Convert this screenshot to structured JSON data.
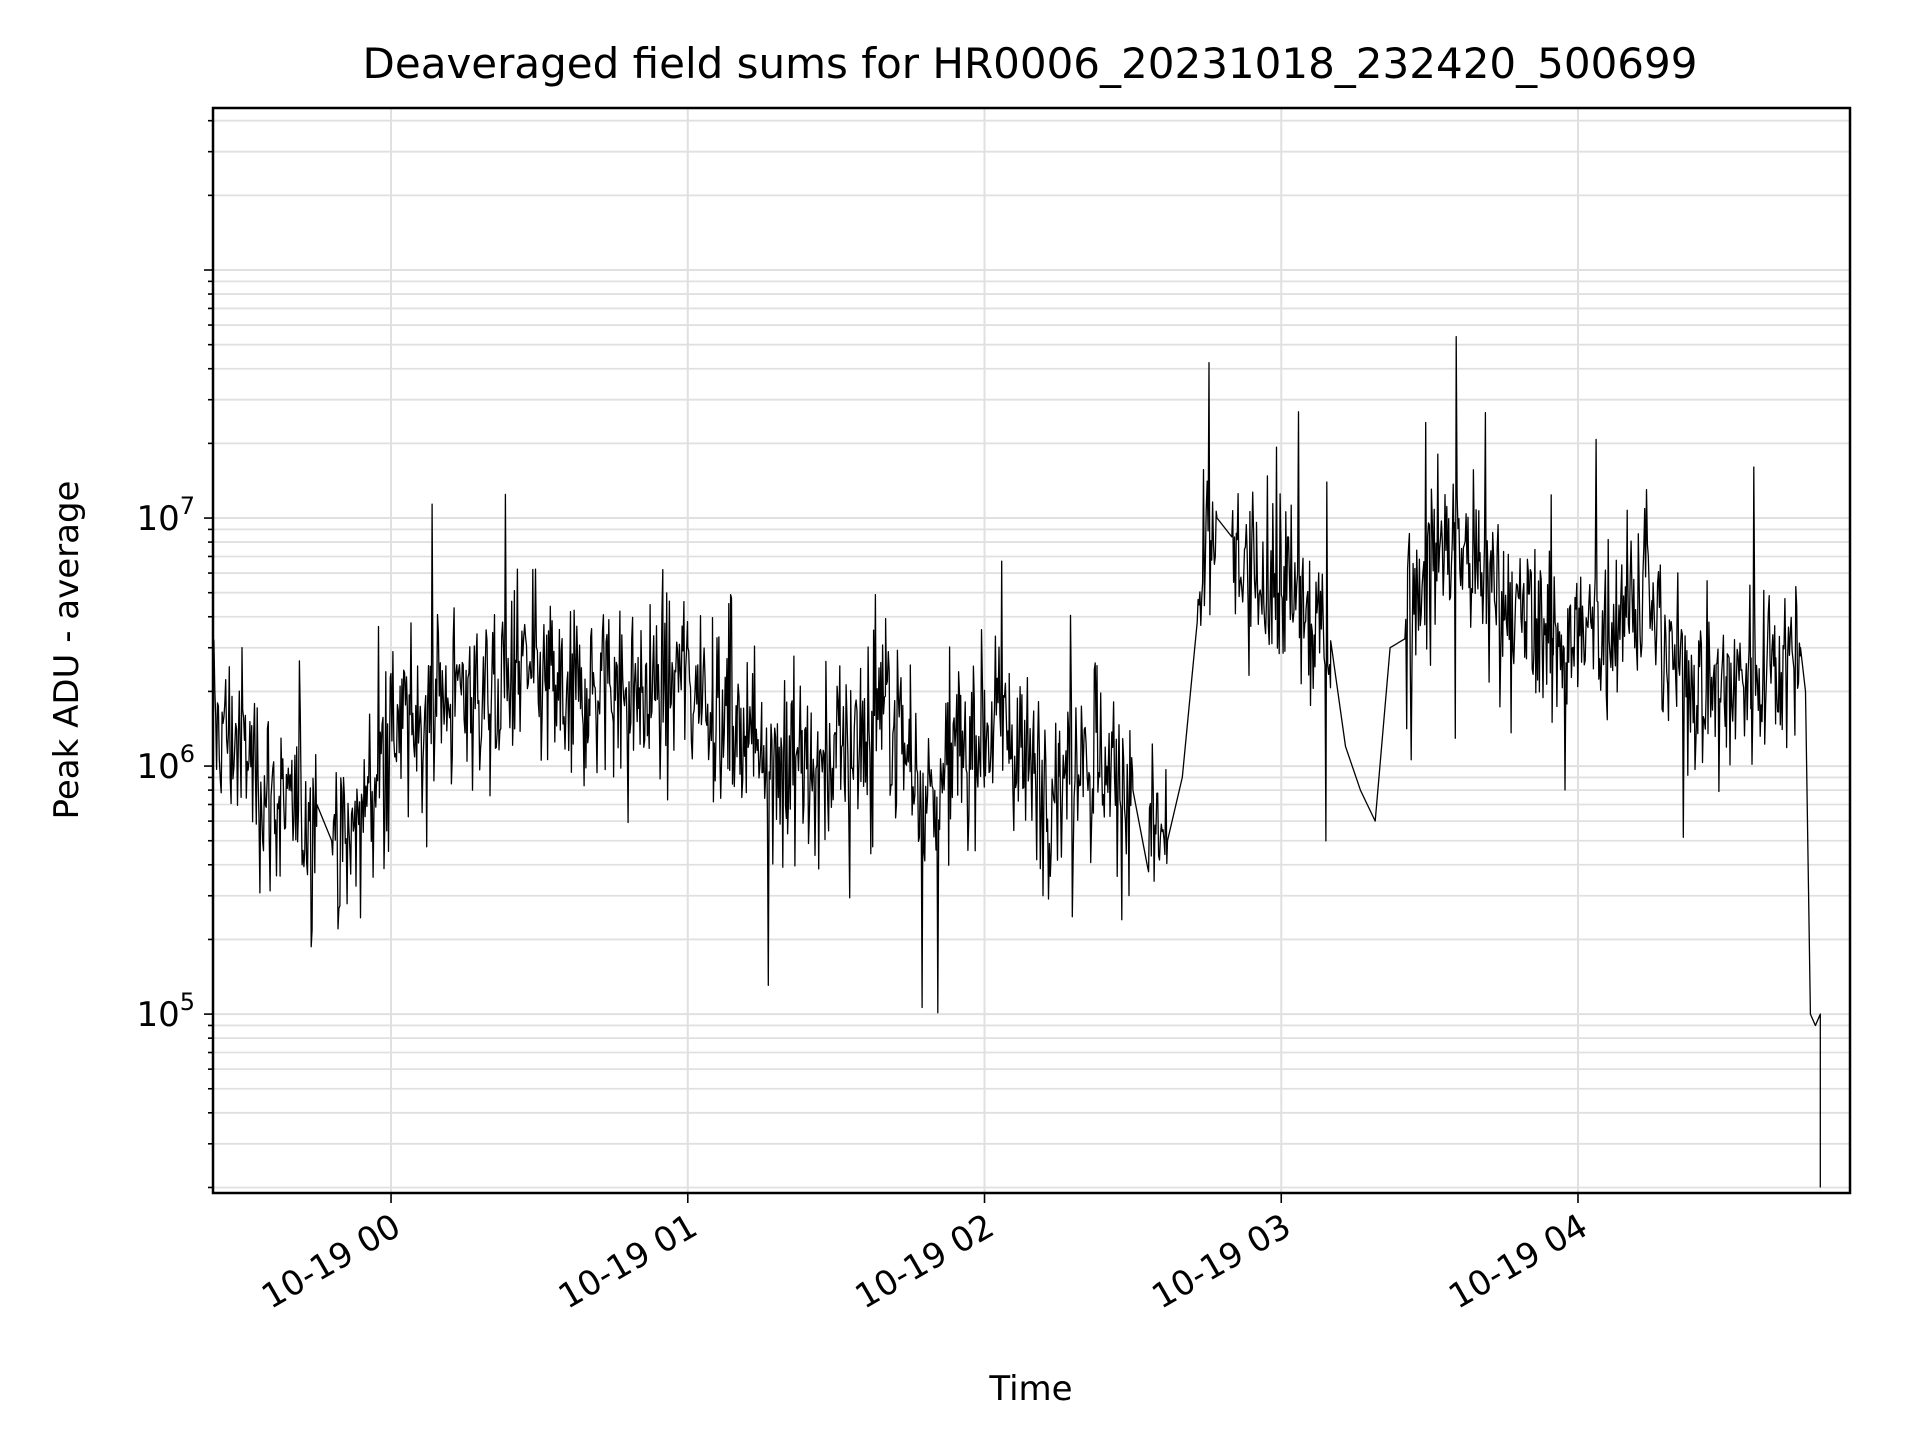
{
  "chart_data": {
    "type": "line",
    "title": "Deaveraged field sums for HR0006_20231018_232420_500699",
    "xlabel": "Time",
    "ylabel": "Peak ADU - average",
    "x_axis_type": "time",
    "y_scale": "log",
    "grid": "major and minor, both axes",
    "xlim": [
      "2023-10-18 23:24",
      "2023-10-19 04:55"
    ],
    "ylim": [
      19000,
      450000000
    ],
    "x_ticks": [
      {
        "value": "2023-10-19 00:00",
        "label": "10-19 00"
      },
      {
        "value": "2023-10-19 01:00",
        "label": "10-19 01"
      },
      {
        "value": "2023-10-19 02:00",
        "label": "10-19 02"
      },
      {
        "value": "2023-10-19 03:00",
        "label": "10-19 03"
      },
      {
        "value": "2023-10-19 04:00",
        "label": "10-19 04"
      }
    ],
    "y_ticks": [
      {
        "value": 100000,
        "base": "10",
        "exp": "5"
      },
      {
        "value": 1000000,
        "base": "10",
        "exp": "6"
      },
      {
        "value": 10000000,
        "base": "10",
        "exp": "7"
      }
    ],
    "series": [
      {
        "color": "#000000",
        "points": [
          [
            "2023-10-18 23:24",
            1500000
          ],
          [
            "2023-10-18 23:30",
            1200000
          ],
          [
            "2023-10-18 23:35",
            800000
          ],
          [
            "2023-10-18 23:40",
            600000
          ],
          [
            "2023-10-18 23:45",
            700000
          ],
          [
            "2023-10-18 23:48",
            450000
          ],
          [
            "2023-10-18 23:52",
            500000
          ],
          [
            "2023-10-18 23:56",
            800000
          ],
          [
            "2023-10-19 00:00",
            1300000
          ],
          [
            "2023-10-19 00:05",
            1500000
          ],
          [
            "2023-10-19 00:10",
            1800000
          ],
          [
            "2023-10-19 00:15",
            2000000
          ],
          [
            "2023-10-19 00:20",
            1900000
          ],
          [
            "2023-10-19 00:25",
            2400000
          ],
          [
            "2023-10-19 00:30",
            2200000
          ],
          [
            "2023-10-19 00:35",
            1900000
          ],
          [
            "2023-10-19 00:40",
            2000000
          ],
          [
            "2023-10-19 00:45",
            2300000
          ],
          [
            "2023-10-19 00:50",
            1900000
          ],
          [
            "2023-10-19 00:55",
            2100000
          ],
          [
            "2023-10-19 01:00",
            2400000
          ],
          [
            "2023-10-19 01:05",
            2000000
          ],
          [
            "2023-10-19 01:10",
            1400000
          ],
          [
            "2023-10-19 01:15",
            1300000
          ],
          [
            "2023-10-19 01:20",
            1100000
          ],
          [
            "2023-10-19 01:25",
            1000000
          ],
          [
            "2023-10-19 01:30",
            1100000
          ],
          [
            "2023-10-19 01:35",
            1400000
          ],
          [
            "2023-10-19 01:40",
            1900000
          ],
          [
            "2023-10-19 01:45",
            1100000
          ],
          [
            "2023-10-19 01:50",
            700000
          ],
          [
            "2023-10-19 01:55",
            1200000
          ],
          [
            "2023-10-19 02:00",
            1500000
          ],
          [
            "2023-10-19 02:05",
            1300000
          ],
          [
            "2023-10-19 02:10",
            900000
          ],
          [
            "2023-10-19 02:15",
            900000
          ],
          [
            "2023-10-19 02:20",
            1300000
          ],
          [
            "2023-10-19 02:25",
            1000000
          ],
          [
            "2023-10-19 02:30",
            800000
          ],
          [
            "2023-10-19 02:33",
            550000
          ],
          [
            "2023-10-19 02:37",
            500000
          ],
          [
            "2023-10-19 02:40",
            900000
          ],
          [
            "2023-10-19 02:43",
            4000000
          ],
          [
            "2023-10-19 02:47",
            10000000
          ],
          [
            "2023-10-19 02:50",
            7000000
          ],
          [
            "2023-10-19 02:55",
            5000000
          ],
          [
            "2023-10-19 03:00",
            5500000
          ],
          [
            "2023-10-19 03:05",
            4000000
          ],
          [
            "2023-10-19 03:10",
            3200000
          ],
          [
            "2023-10-19 03:13",
            1200000
          ],
          [
            "2023-10-19 03:16",
            800000
          ],
          [
            "2023-10-19 03:19",
            600000
          ],
          [
            "2023-10-19 03:22",
            3000000
          ],
          [
            "2023-10-19 03:25",
            4500000
          ],
          [
            "2023-10-19 03:30",
            6500000
          ],
          [
            "2023-10-19 03:35",
            8000000
          ],
          [
            "2023-10-19 03:40",
            6000000
          ],
          [
            "2023-10-19 03:45",
            4500000
          ],
          [
            "2023-10-19 03:50",
            3600000
          ],
          [
            "2023-10-19 03:55",
            3400000
          ],
          [
            "2023-10-19 04:00",
            3200000
          ],
          [
            "2023-10-19 04:05",
            3600000
          ],
          [
            "2023-10-19 04:10",
            5500000
          ],
          [
            "2023-10-19 04:15",
            4000000
          ],
          [
            "2023-10-19 04:20",
            2500000
          ],
          [
            "2023-10-19 04:25",
            2200000
          ],
          [
            "2023-10-19 04:30",
            2000000
          ],
          [
            "2023-10-19 04:35",
            2500000
          ],
          [
            "2023-10-19 04:40",
            2600000
          ],
          [
            "2023-10-19 04:45",
            3000000
          ],
          [
            "2023-10-19 04:46",
            2000000
          ],
          [
            "2023-10-19 04:47",
            100000
          ],
          [
            "2023-10-19 04:48",
            90000
          ],
          [
            "2023-10-19 04:49",
            100000
          ],
          [
            "2023-10-19 04:49",
            20000
          ]
        ]
      }
    ]
  }
}
